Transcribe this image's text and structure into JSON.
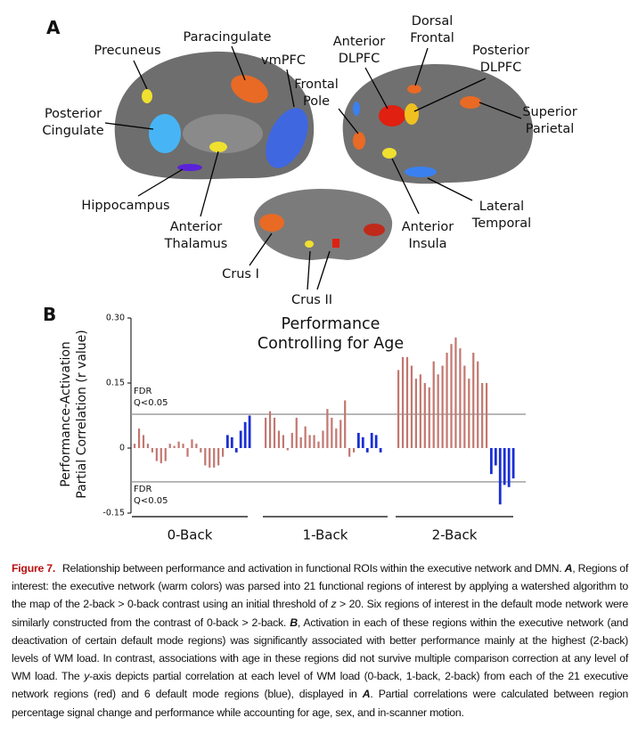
{
  "panel_a": {
    "letter": "A",
    "labels": [
      {
        "lines": [
          "Precuneus"
        ]
      },
      {
        "lines": [
          "Paracingulate"
        ]
      },
      {
        "lines": [
          "vmPFC"
        ]
      },
      {
        "lines": [
          "Posterior",
          "Cingulate"
        ]
      },
      {
        "lines": [
          "Hippocampus"
        ]
      },
      {
        "lines": [
          "Anterior",
          "Thalamus"
        ]
      },
      {
        "lines": [
          "Crus I"
        ]
      },
      {
        "lines": [
          "Crus II"
        ]
      },
      {
        "lines": [
          "Anterior",
          "DLPFC"
        ]
      },
      {
        "lines": [
          "Dorsal",
          "Frontal"
        ]
      },
      {
        "lines": [
          "Posterior",
          "DLPFC"
        ]
      },
      {
        "lines": [
          "Frontal",
          "Pole"
        ]
      },
      {
        "lines": [
          "Superior",
          "Parietal"
        ]
      },
      {
        "lines": [
          "Lateral",
          "Temporal"
        ]
      },
      {
        "lines": [
          "Anterior",
          "Insula"
        ]
      }
    ]
  },
  "chart_data": {
    "type": "bar",
    "letter": "B",
    "title_lines": [
      "Performance",
      "Controlling for Age"
    ],
    "ylabel_lines": [
      "Performance-Activation",
      "Partial Correlation (r value)"
    ],
    "ylim": [
      -0.15,
      0.3
    ],
    "yticks": [
      -0.15,
      0,
      0.15,
      {
        "value": 0.3,
        "label": "0.30"
      }
    ],
    "reference_lines": [
      {
        "value": 0.078,
        "label_lines": [
          "FDR",
          "Q<0.05"
        ]
      },
      {
        "value": -0.078,
        "label_lines": [
          "FDR",
          "Q<0.05"
        ]
      }
    ],
    "groups": [
      "0-Back",
      "1-Back",
      "2-Back"
    ],
    "series": [
      {
        "color": "#c27770",
        "values": [
          [
            0.01,
            0.045,
            0.03,
            0.01,
            -0.01,
            -0.03,
            -0.035,
            -0.03,
            0.01,
            0.005,
            0.015,
            0.01,
            -0.02,
            0.02,
            0.01,
            -0.01,
            -0.04,
            -0.045,
            -0.045,
            -0.04,
            -0.02
          ],
          [
            0.07,
            0.085,
            0.07,
            0.04,
            0.03,
            -0.005,
            0.035,
            0.07,
            0.025,
            0.05,
            0.03,
            0.03,
            0.015,
            0.04,
            0.09,
            0.07,
            0.045,
            0.065,
            0.11,
            -0.02,
            -0.01
          ],
          [
            0.18,
            0.21,
            0.21,
            0.19,
            0.16,
            0.17,
            0.15,
            0.14,
            0.2,
            0.17,
            0.19,
            0.22,
            0.24,
            0.255,
            0.23,
            0.19,
            0.16,
            0.22,
            0.2,
            0.15,
            0.15
          ]
        ]
      },
      {
        "color": "#1a2fd4",
        "values": [
          [
            0.03,
            0.025,
            -0.01,
            0.04,
            0.06,
            0.075
          ],
          [
            0.035,
            0.025,
            -0.01,
            0.035,
            0.03,
            -0.01
          ],
          [
            -0.06,
            -0.04,
            -0.13,
            -0.085,
            -0.09,
            -0.07
          ]
        ]
      }
    ]
  },
  "caption": {
    "label": "Figure 7.",
    "parts": [
      "Relationship between performance and activation in functional ROIs within the executive network and DMN. ",
      "A",
      ", Regions of interest: the executive network (warm colors) was parsed into 21 functional regions of interest by applying a watershed algorithm to the map of the 2-back > 0-back contrast using an initial threshold of ",
      "z",
      " > 20. Six regions of interest in the default mode network were similarly constructed from the contrast of 0-back > 2-back. ",
      "B",
      ", Activation in each of these regions within the executive network (and deactivation of certain default mode regions) was significantly associated with better performance mainly at the highest (2-back) levels of WM load. In contrast, associations with age in these regions did not survive multiple comparison correction at any level of WM load. The ",
      "y",
      "-axis depicts partial correlation at each level of WM load (0-back, 1-back, 2-back) from each of the 21 executive network regions (red) and 6 default mode regions (blue), displayed in ",
      "A",
      ". Partial correlations were calculated between region percentage signal change and performance while accounting for age, sex, and in-scanner motion."
    ]
  }
}
